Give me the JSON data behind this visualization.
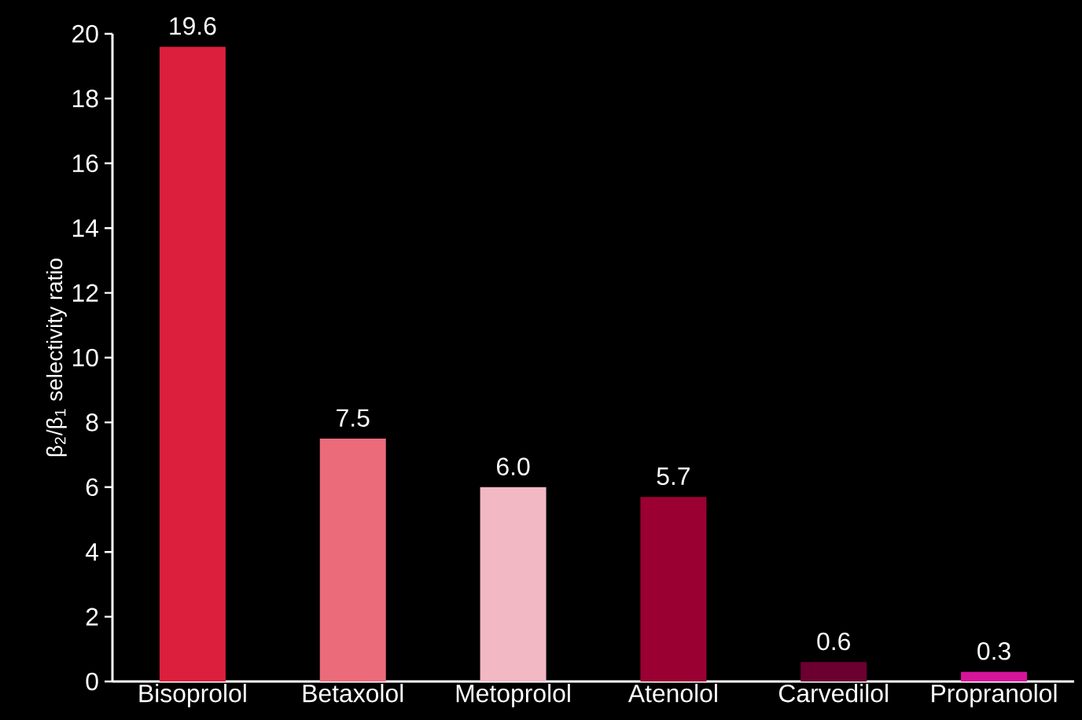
{
  "chart_data": {
    "type": "bar",
    "ylabel": "β$_{2}$/β$_{1}$ selectivity ratio",
    "categories": [
      "Bisoprolol",
      "Betaxolol",
      "Metoprolol",
      "Atenolol",
      "Carvedilol",
      "Propranolol"
    ],
    "values": [
      19.6,
      7.5,
      6.0,
      5.7,
      0.6,
      0.3
    ],
    "value_labels": [
      "19.6",
      "7.5",
      "6.0",
      "5.7",
      "0.6",
      "0.3"
    ],
    "colors": [
      "#db1f3c",
      "#eb6b7b",
      "#f2b8c3",
      "#9b0033",
      "#6b0030",
      "#d6149a"
    ],
    "ylim": [
      0,
      20
    ],
    "yticks": [
      0,
      2,
      4,
      6,
      8,
      10,
      12,
      14,
      16,
      18,
      20
    ],
    "grid": false
  }
}
